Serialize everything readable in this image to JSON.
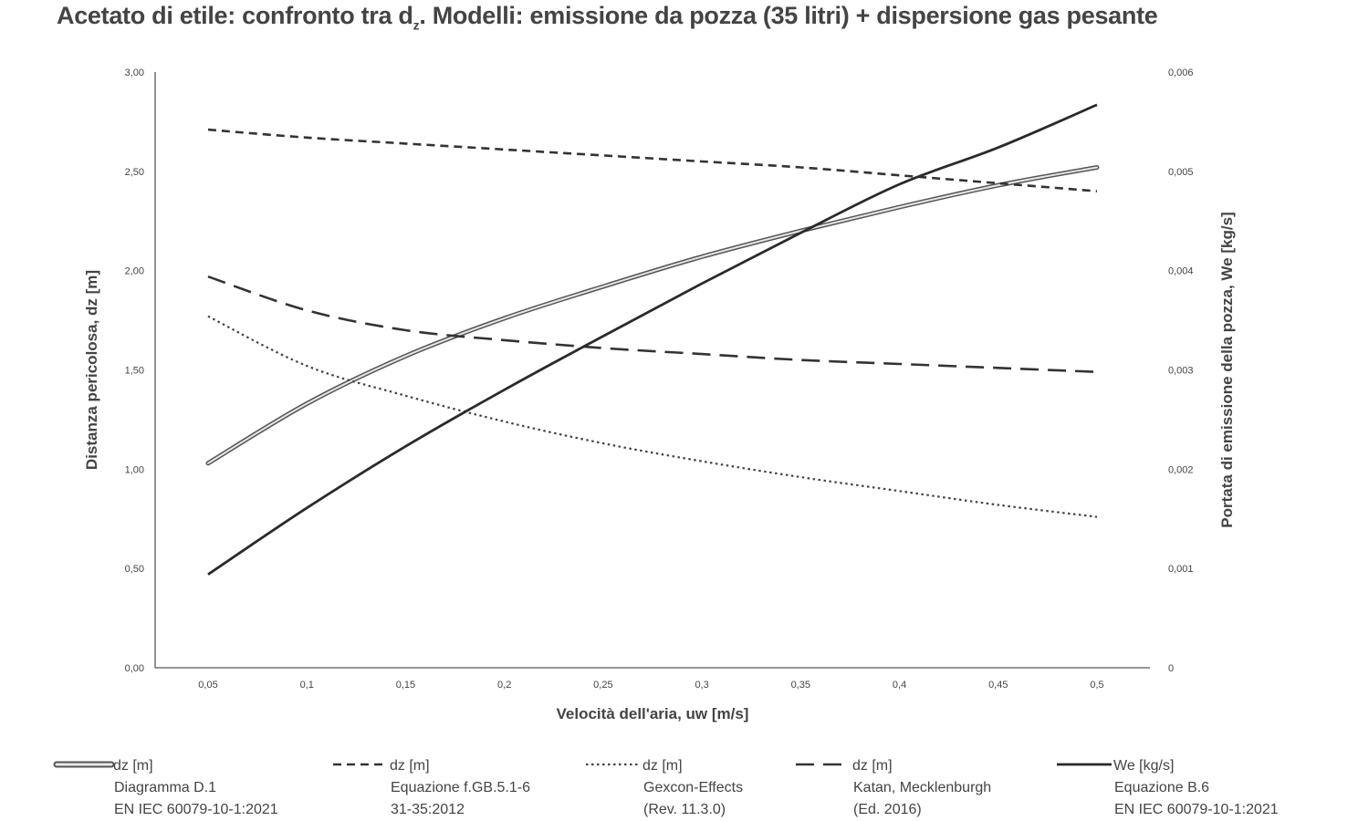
{
  "chart_data": {
    "type": "line",
    "title": "Acetato di etile: confronto tra dz. Modelli: emissione da pozza (35 litri) + dispersione gas pesante",
    "title_parts": {
      "pre": "Acetato di etile: confronto tra d",
      "sub": "z",
      "post": ". Modelli: emissione da pozza (35 litri) + dispersione gas pesante"
    },
    "xlabel": "Velocità dell'aria, uw [m/s]",
    "ylabel_left": "Distanza pericolosa, dz [m]",
    "ylabel_right": "Portata di emissione della pozza, We [kg/s]",
    "x": [
      0.05,
      0.1,
      0.15,
      0.2,
      0.25,
      0.3,
      0.35,
      0.4,
      0.45,
      0.5
    ],
    "x_tick_labels": [
      "0,05",
      "0,1",
      "0,15",
      "0,2",
      "0,25",
      "0,3",
      "0,35",
      "0,4",
      "0,45",
      "0,5"
    ],
    "ylim_left": [
      0,
      3
    ],
    "y_ticks_left": [
      "0,00",
      "0,50",
      "1,00",
      "1,50",
      "2,00",
      "2,50",
      "3,00"
    ],
    "ylim_right": [
      0,
      0.006
    ],
    "y_ticks_right": [
      "0",
      "0,001",
      "0,002",
      "0,003",
      "0,004",
      "0,005",
      "0,006"
    ],
    "grid": false,
    "legend_position": "bottom",
    "series": [
      {
        "name": "dz [m]",
        "desc": [
          "Diagramma D.1",
          "EN IEC 60079-10-1:2021"
        ],
        "axis": "left",
        "style": "double",
        "values": [
          1.03,
          1.33,
          1.57,
          1.76,
          1.92,
          2.07,
          2.2,
          2.32,
          2.43,
          2.52
        ]
      },
      {
        "name": "dz [m]",
        "desc": [
          "Equazione f.GB.5.1-6",
          "31-35:2012"
        ],
        "axis": "left",
        "style": "dashed",
        "values": [
          2.71,
          2.67,
          2.64,
          2.61,
          2.58,
          2.55,
          2.52,
          2.48,
          2.44,
          2.4
        ]
      },
      {
        "name": "dz [m]",
        "desc": [
          "Gexcon-Effects",
          "(Rev. 11.3.0)"
        ],
        "axis": "left",
        "style": "dotted",
        "values": [
          1.77,
          1.52,
          1.37,
          1.24,
          1.13,
          1.04,
          0.96,
          0.89,
          0.82,
          0.76
        ]
      },
      {
        "name": "dz [m]",
        "desc": [
          "Katan, Mecklenburgh",
          "(Ed. 2016)"
        ],
        "axis": "left",
        "style": "longdash",
        "values": [
          1.97,
          1.8,
          1.7,
          1.65,
          1.61,
          1.58,
          1.55,
          1.53,
          1.51,
          1.49
        ]
      },
      {
        "name": "We [kg/s]",
        "desc": [
          "Equazione B.6",
          "EN IEC 60079-10-1:2021"
        ],
        "axis": "right",
        "style": "solid",
        "values": [
          0.00094,
          0.00161,
          0.00223,
          0.0028,
          0.00334,
          0.00387,
          0.00438,
          0.00487,
          0.00524,
          0.00567
        ]
      }
    ]
  }
}
